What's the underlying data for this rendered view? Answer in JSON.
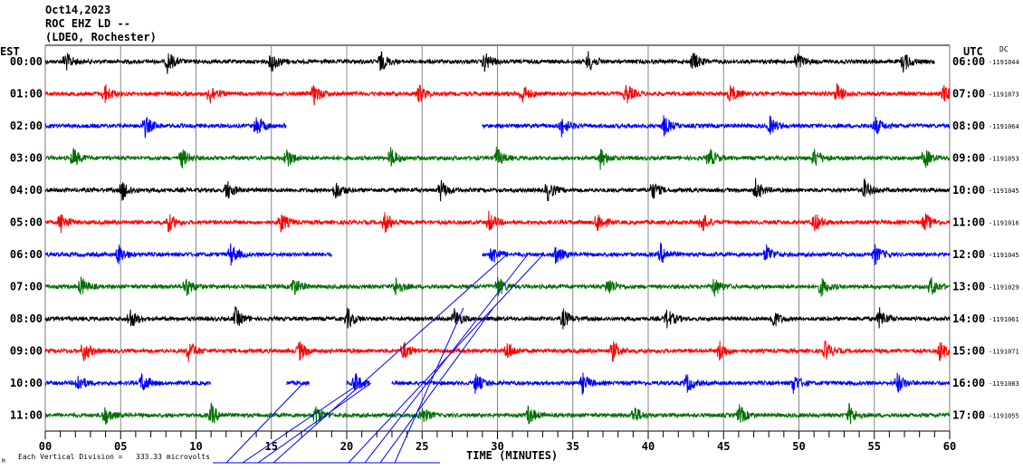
{
  "header": {
    "date": "Oct14,2023",
    "station": "ROC EHZ LD --",
    "network": "(LDEO, Rochester)",
    "left_zone": "EST",
    "right_zone": "UTC",
    "dc_label": "DC"
  },
  "chart_data": {
    "type": "line",
    "title": "ROC EHZ LD -- helicorder",
    "xlabel": "TIME (MINUTES)",
    "xlim": [
      0,
      60
    ],
    "x_ticks": [
      "00",
      "05",
      "10",
      "15",
      "20",
      "25",
      "30",
      "35",
      "40",
      "45",
      "50",
      "55",
      "60"
    ],
    "scale_note": "Each Vertical Division =   333.33 microvolts",
    "footer_mark": "M",
    "grid": true,
    "rows": [
      {
        "est": "00:00",
        "utc": "06:00",
        "dc": "-1191044",
        "color": "#000000",
        "events": [
          1.3,
          8.1,
          15,
          22.2,
          29.1,
          36,
          42.9,
          49.8,
          56.9
        ],
        "segments": [
          [
            0,
            59
          ]
        ]
      },
      {
        "est": "01:00",
        "utc": "07:00",
        "dc": "-1191073",
        "color": "#ff0000",
        "events": [
          3.9,
          10.9,
          17.8,
          24.7,
          31.6,
          38.5,
          45.4,
          52.5,
          59.6
        ],
        "segments": [
          [
            0,
            60
          ]
        ]
      },
      {
        "est": "02:00",
        "utc": "08:00",
        "dc": "-1191064",
        "color": "#0000ff",
        "events": [
          6.6,
          14,
          34.2,
          41,
          48,
          55
        ],
        "segments": [
          [
            0,
            16
          ],
          [
            29,
            60
          ]
        ]
      },
      {
        "est": "03:00",
        "utc": "09:00",
        "dc": "-1191053",
        "color": "#006e00",
        "events": [
          1.8,
          9,
          16,
          22.9,
          29.9,
          36.8,
          44,
          51,
          58.3
        ],
        "segments": [
          [
            0,
            60
          ]
        ]
      },
      {
        "est": "04:00",
        "utc": "10:00",
        "dc": "-1191045",
        "color": "#000000",
        "events": [
          5.1,
          12,
          19.2,
          26.2,
          33.3,
          40.2,
          47.1,
          54.3
        ],
        "segments": [
          [
            0,
            60
          ]
        ]
      },
      {
        "est": "05:00",
        "utc": "11:00",
        "dc": "-1191016",
        "color": "#ff0000",
        "events": [
          1,
          8.1,
          15.6,
          22.5,
          29.4,
          36.6,
          43.5,
          51,
          58.3
        ],
        "segments": [
          [
            0,
            60
          ]
        ]
      },
      {
        "est": "06:00",
        "utc": "12:00",
        "dc": "-1191045",
        "color": "#0000ff",
        "events": [
          4.8,
          12.3,
          29.6,
          33.8,
          40.8,
          47.8,
          55
        ],
        "segments": [
          [
            0,
            19
          ],
          [
            29,
            60
          ]
        ]
      },
      {
        "est": "07:00",
        "utc": "13:00",
        "dc": "-1191029",
        "color": "#006e00",
        "events": [
          2.3,
          9.3,
          16.4,
          23.2,
          30,
          37.3,
          44.3,
          51.4,
          58.7
        ],
        "segments": [
          [
            0,
            60
          ]
        ]
      },
      {
        "est": "08:00",
        "utc": "14:00",
        "dc": "-1191061",
        "color": "#000000",
        "events": [
          5.6,
          12.6,
          20,
          27.1,
          34.3,
          41.2,
          48.2,
          55.3
        ],
        "segments": [
          [
            0,
            60
          ]
        ]
      },
      {
        "est": "09:00",
        "utc": "15:00",
        "dc": "-1191071",
        "color": "#ff0000",
        "events": [
          2.5,
          9.5,
          16.8,
          23.7,
          30.6,
          37.6,
          44.7,
          51.7,
          59.3
        ],
        "segments": [
          [
            0,
            60
          ]
        ]
      },
      {
        "est": "10:00",
        "utc": "16:00",
        "dc": "-1191083",
        "color": "#0000ff",
        "events": [
          2.1,
          6.4,
          20.5,
          28.5,
          35.6,
          42.5,
          49.6,
          56.5
        ],
        "segments": [
          [
            0,
            11
          ],
          [
            16,
            17.5
          ],
          [
            20,
            21.5
          ],
          [
            23,
            60
          ]
        ]
      },
      {
        "est": "11:00",
        "utc": "17:00",
        "dc": "-1191055",
        "color": "#006e00",
        "events": [
          3.9,
          11,
          17.9,
          24.9,
          32,
          39,
          46,
          53.3
        ],
        "segments": [
          [
            0,
            60
          ]
        ]
      }
    ]
  }
}
